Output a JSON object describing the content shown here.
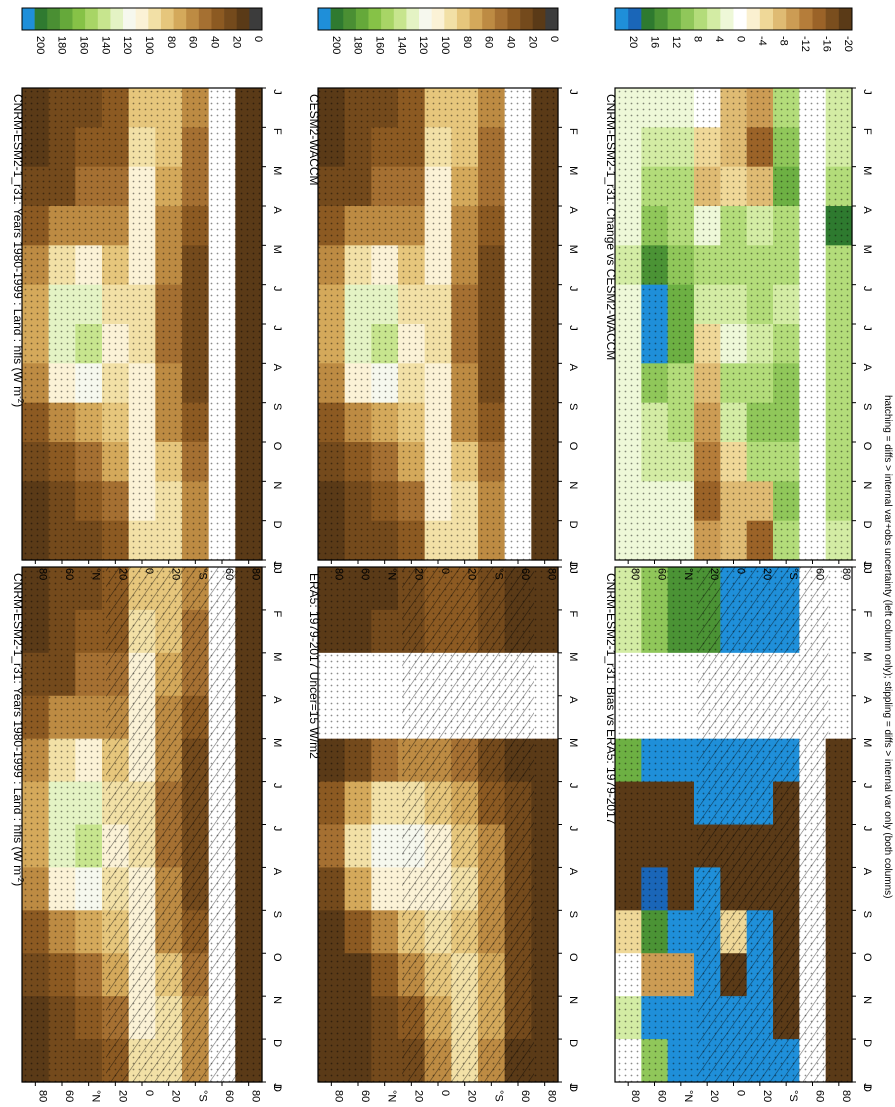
{
  "figure": {
    "footnote": "hatching = diffs > internal var+obs uncertainty (left column only); stippling = diffs > internal var only (both columns)"
  },
  "colors": {
    "abs_scale": [
      "#3c3c3c",
      "#5a3a17",
      "#744a1c",
      "#8c5a22",
      "#a57032",
      "#bd8b43",
      "#d4a95b",
      "#e6c67c",
      "#f2e0a6",
      "#fbf2d6",
      "#f6f8ee",
      "#e4f3c4",
      "#c7e58e",
      "#a8d566",
      "#86c247",
      "#65a93a",
      "#4a8f33",
      "#2f7a30",
      "#1f8fd9"
    ],
    "abs_levels": [
      "0",
      "20",
      "40",
      "60",
      "80",
      "100",
      "120",
      "140",
      "160",
      "180",
      "200"
    ],
    "diff_scale": [
      "#5a3a17",
      "#7a4e1e",
      "#9b6328",
      "#b57d3a",
      "#cc9c54",
      "#dfbb73",
      "#efd898",
      "#faf0d0",
      "#ffffff",
      "#eef8d8",
      "#d3eca4",
      "#b3dc7a",
      "#90c75a",
      "#6db043",
      "#4b9335",
      "#2e7a2f",
      "#1a66b8",
      "#1f8fd9"
    ],
    "diff_levels": [
      "-20",
      "-16",
      "-12",
      "-8",
      "-4",
      "0",
      "4",
      "8",
      "12",
      "16",
      "20"
    ]
  },
  "axes": {
    "months": [
      "J",
      "F",
      "M",
      "A",
      "M",
      "J",
      "J",
      "A",
      "S",
      "O",
      "N",
      "D",
      "J"
    ],
    "lat_ticks": [
      "80",
      "60",
      "°N",
      "20",
      "0",
      "20",
      "°S",
      "60",
      "80"
    ],
    "bottom_month_label": "D"
  },
  "panels": [
    {
      "id": "model-left",
      "title": "CNRM-ESM2-1_r31: Years 1980-1999 : Land : hfls (W m",
      "title_sup": "-2",
      "title_end": ")",
      "scale": "abs"
    },
    {
      "id": "model-right",
      "title": "CNRM-ESM2-1_r31: Years 1980-1999 : Land : hfls (W m",
      "title_sup": "-2",
      "title_end": ")",
      "scale": "abs"
    },
    {
      "id": "obs",
      "title": "ERA5: 1979-2017 Uncer=15 W/m2",
      "scale": "abs"
    },
    {
      "id": "ref-model",
      "title": "CESM2-WACCM",
      "scale": "abs"
    },
    {
      "id": "bias",
      "title": "CNRM-ESM2-1_r31: Bias vs ERA5: 1979-2017",
      "scale": "diff"
    },
    {
      "id": "change",
      "title": "CNRM-ESM2-1_r31: Change vs CESM2-WACCM",
      "scale": "diff"
    }
  ],
  "chart_data": [
    {
      "type": "heatmap",
      "title": "CNRM-ESM2-1_r31: Years 1980-1999 : Land : hfls (W m-2)",
      "x": [
        "J",
        "F",
        "M",
        "A",
        "M",
        "J",
        "J",
        "A",
        "S",
        "O",
        "N",
        "D",
        "J"
      ],
      "y": [
        "80N",
        "60N",
        "40N",
        "20N",
        "0",
        "20S",
        "40S",
        "60S",
        "80S"
      ],
      "zlim": [
        0,
        200
      ],
      "values": [
        [
          8,
          10,
          15,
          28,
          45,
          60,
          65,
          50,
          25,
          12,
          9,
          8,
          8
        ],
        [
          15,
          15,
          22,
          45,
          80,
          115,
          120,
          90,
          50,
          25,
          18,
          15,
          15
        ],
        [
          20,
          25,
          35,
          55,
          90,
          120,
          125,
          100,
          65,
          40,
          28,
          22,
          20
        ],
        [
          25,
          30,
          40,
          55,
          75,
          85,
          90,
          85,
          75,
          60,
          40,
          30,
          25
        ],
        [
          75,
          80,
          90,
          92,
          90,
          85,
          88,
          92,
          95,
          95,
          90,
          80,
          75
        ],
        [
          75,
          70,
          65,
          55,
          45,
          40,
          40,
          45,
          55,
          70,
          80,
          85,
          75
        ],
        [
          45,
          40,
          35,
          25,
          18,
          15,
          15,
          18,
          25,
          35,
          45,
          50,
          45
        ],
        [
          null,
          null,
          null,
          null,
          null,
          null,
          null,
          null,
          null,
          null,
          null,
          null,
          null
        ],
        [
          2,
          2,
          2,
          2,
          2,
          2,
          2,
          2,
          2,
          2,
          2,
          2,
          2
        ]
      ]
    },
    {
      "type": "heatmap",
      "title": "ERA5: 1979-2017 Uncer=15 W/m2",
      "x": [
        "J",
        "F",
        "M",
        "A",
        "M",
        "J",
        "J",
        "A",
        "S",
        "O",
        "N",
        "D",
        "J"
      ],
      "y": [
        "80N",
        "60N",
        "40N",
        "20N",
        "0",
        "20S",
        "40S",
        "60S",
        "80S"
      ],
      "zlim": [
        0,
        200
      ],
      "values": [
        [
          5,
          5,
          null,
          null,
          8,
          25,
          35,
          20,
          8,
          5,
          5,
          5,
          5
        ],
        [
          8,
          8,
          null,
          null,
          20,
          60,
          80,
          60,
          25,
          10,
          8,
          8,
          8
        ],
        [
          10,
          12,
          null,
          null,
          35,
          80,
          110,
          95,
          55,
          25,
          15,
          12,
          10
        ],
        [
          15,
          15,
          null,
          null,
          45,
          85,
          100,
          95,
          70,
          45,
          30,
          20,
          15
        ],
        [
          30,
          30,
          null,
          null,
          50,
          75,
          95,
          95,
          80,
          70,
          65,
          50,
          30
        ],
        [
          25,
          25,
          null,
          null,
          40,
          60,
          70,
          80,
          75,
          80,
          85,
          80,
          25
        ],
        [
          15,
          15,
          null,
          null,
          20,
          30,
          45,
          55,
          55,
          60,
          65,
          55,
          15
        ],
        [
          5,
          5,
          null,
          null,
          8,
          12,
          15,
          20,
          18,
          15,
          12,
          8,
          5
        ],
        [
          2,
          2,
          null,
          null,
          2,
          2,
          2,
          2,
          2,
          2,
          2,
          2,
          2
        ]
      ]
    },
    {
      "type": "heatmap",
      "title": "CNRM-ESM2-1_r31: Bias vs ERA5: 1979-2017",
      "x": [
        "J",
        "F",
        "M",
        "A",
        "M",
        "J",
        "J",
        "A",
        "S",
        "O",
        "N",
        "D",
        "J"
      ],
      "y": [
        "80N",
        "60N",
        "40N",
        "20N",
        "0",
        "20S",
        "40S",
        "60S",
        "80S"
      ],
      "zlim": [
        -20,
        20
      ],
      "values": [
        [
          5,
          5,
          null,
          null,
          12,
          -20,
          -20,
          -20,
          -5,
          0,
          5,
          0,
          0
        ],
        [
          10,
          10,
          null,
          null,
          20,
          -20,
          -20,
          18,
          15,
          -10,
          20,
          10,
          10
        ],
        [
          15,
          15,
          null,
          null,
          20,
          -20,
          -20,
          -20,
          20,
          -10,
          20,
          20,
          15
        ],
        [
          15,
          15,
          null,
          null,
          20,
          20,
          -20,
          20,
          20,
          20,
          20,
          20,
          15
        ],
        [
          20,
          20,
          null,
          null,
          20,
          20,
          -20,
          -20,
          -5,
          -20,
          20,
          20,
          20
        ],
        [
          20,
          20,
          null,
          null,
          20,
          20,
          -20,
          -20,
          20,
          20,
          20,
          20,
          20
        ],
        [
          20,
          20,
          null,
          null,
          20,
          -20,
          -20,
          -20,
          -20,
          -20,
          -20,
          20,
          20
        ],
        [
          null,
          null,
          null,
          null,
          null,
          null,
          null,
          null,
          null,
          null,
          null,
          null,
          null
        ],
        [
          0,
          0,
          null,
          null,
          -20,
          -20,
          -20,
          -20,
          -20,
          -20,
          -20,
          -20,
          0
        ]
      ]
    },
    {
      "type": "heatmap",
      "title": "CNRM-ESM2-1_r31: Change vs CESM2-WACCM",
      "x": [
        "J",
        "F",
        "M",
        "A",
        "M",
        "J",
        "J",
        "A",
        "S",
        "O",
        "N",
        "D",
        "J"
      ],
      "y": [
        "80N",
        "60N",
        "40N",
        "20N",
        "0",
        "20S",
        "40S",
        "60S",
        "80S"
      ],
      "zlim": [
        -20,
        20
      ],
      "values": [
        [
          2,
          2,
          2,
          3,
          5,
          2,
          2,
          3,
          3,
          2,
          2,
          2,
          2
        ],
        [
          3,
          4,
          6,
          10,
          15,
          22,
          20,
          10,
          5,
          4,
          3,
          3,
          3
        ],
        [
          2,
          4,
          6,
          8,
          10,
          12,
          12,
          8,
          6,
          4,
          3,
          2,
          2
        ],
        [
          0,
          -4,
          -8,
          2,
          6,
          4,
          -4,
          -8,
          -10,
          -12,
          -14,
          -10,
          0
        ],
        [
          -6,
          -8,
          -4,
          6,
          8,
          4,
          2,
          6,
          4,
          -4,
          -6,
          -6,
          -6
        ],
        [
          -10,
          -14,
          -6,
          4,
          6,
          6,
          4,
          8,
          10,
          6,
          -8,
          -14,
          -10
        ],
        [
          6,
          10,
          12,
          8,
          6,
          4,
          6,
          10,
          10,
          8,
          10,
          8,
          6
        ],
        [
          null,
          null,
          null,
          null,
          null,
          null,
          null,
          null,
          null,
          null,
          null,
          null,
          null
        ],
        [
          4,
          4,
          6,
          16,
          8,
          6,
          6,
          6,
          6,
          6,
          6,
          4,
          4
        ]
      ]
    }
  ]
}
